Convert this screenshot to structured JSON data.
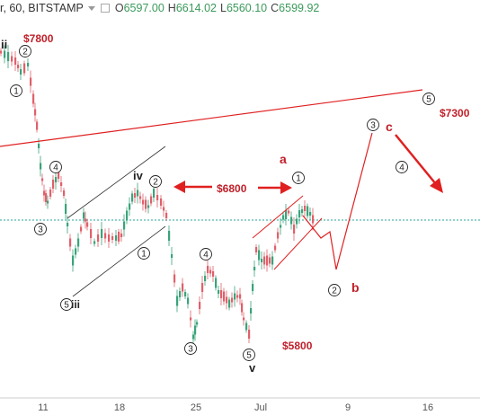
{
  "header": {
    "symbol": "r, 60, BITSTAMP",
    "ohlc": [
      {
        "key": "O",
        "value": "6597.00"
      },
      {
        "key": "H",
        "value": "6614.02"
      },
      {
        "key": "L",
        "value": "6560.10"
      },
      {
        "key": "C",
        "value": "6599.92"
      }
    ]
  },
  "colors": {
    "up": "#3aa37a",
    "down": "#e0606a",
    "annotation": "#e02020",
    "label_red": "#c0202a",
    "channel": "#333333",
    "current_price_line": "#26a69a"
  },
  "chart_data": {
    "type": "candlestick",
    "title": "",
    "xlabel": "",
    "ylabel": "",
    "x_ticks": [
      "11",
      "18",
      "25",
      "Jul",
      "9",
      "16"
    ],
    "price_levels": [
      "$7800",
      "$6800",
      "$5800",
      "$7300"
    ],
    "current_price": 6599.92,
    "wave_labels": [
      "ii",
      "iii",
      "iv",
      "v",
      "1",
      "2",
      "3",
      "4",
      "5",
      "a",
      "b",
      "c"
    ],
    "annotations": [
      "$7800",
      "$6800",
      "$5800",
      "$7300",
      "a",
      "b",
      "c"
    ],
    "ylim": [
      5600,
      8000
    ]
  }
}
